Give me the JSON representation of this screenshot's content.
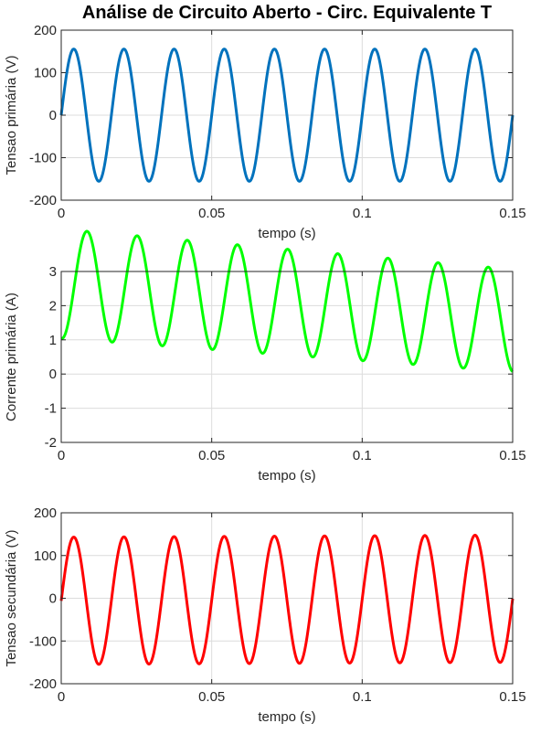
{
  "figure_title": "Análise de Circuito Aberto - Circ. Equivalente T",
  "chart_data": [
    {
      "type": "line",
      "xlabel": "tempo (s)",
      "ylabel": "Tensao primária (V)",
      "xlim": [
        0,
        0.15
      ],
      "ylim": [
        -200,
        200
      ],
      "xticks": [
        0,
        0.05,
        0.1,
        0.15
      ],
      "xtick_labels": [
        "0",
        "0.05",
        "0.1",
        "0.15"
      ],
      "yticks": [
        -200,
        -100,
        0,
        100,
        200
      ],
      "ytick_labels": [
        "-200",
        "-100",
        "0",
        "100",
        "200"
      ],
      "grid": true,
      "color": "#0072BD",
      "series": [
        {
          "model": "sine",
          "amplitude": 155.6,
          "amplitude_end": 155.6,
          "frequency_hz": 60,
          "phase_deg": 0,
          "offset": 0,
          "offset_end": 0,
          "x_range": [
            0,
            0.15
          ]
        }
      ]
    },
    {
      "type": "line",
      "xlabel": "tempo (s)",
      "ylabel": "Corrente primária (A)",
      "xlim": [
        0,
        0.15
      ],
      "ylim": [
        -2,
        3
      ],
      "xticks": [
        0,
        0.05,
        0.1,
        0.15
      ],
      "xtick_labels": [
        "0",
        "0.05",
        "0.1",
        "0.15"
      ],
      "yticks": [
        -2,
        -1,
        0,
        1,
        2,
        3
      ],
      "ytick_labels": [
        "-2",
        "-1",
        "0",
        "1",
        "2",
        "3"
      ],
      "grid": true,
      "color": "#00FF00",
      "series": [
        {
          "model": "decaying_offset_sine",
          "amplitude": 1.6,
          "amplitude_end": 1.5,
          "frequency_hz": 60,
          "phase_deg": -95,
          "offset": 1.05,
          "offset_end": 0.07,
          "x_range": [
            0,
            0.15
          ]
        }
      ]
    },
    {
      "type": "line",
      "xlabel": "tempo (s)",
      "ylabel": "Tensao secundária (V)",
      "xlim": [
        0,
        0.15
      ],
      "ylim": [
        -200,
        200
      ],
      "xticks": [
        0,
        0.05,
        0.1,
        0.15
      ],
      "xtick_labels": [
        "0",
        "0.05",
        "0.1",
        "0.15"
      ],
      "yticks": [
        -200,
        -100,
        0,
        100,
        200
      ],
      "ytick_labels": [
        "-200",
        "-100",
        "0",
        "100",
        "200"
      ],
      "grid": true,
      "color": "#FF0000",
      "series": [
        {
          "model": "decaying_offset_sine",
          "amplitude": 149,
          "amplitude_end": 149,
          "frequency_hz": 60,
          "phase_deg": 0,
          "offset": -6,
          "offset_end": -1,
          "x_range": [
            0,
            0.15
          ]
        }
      ]
    }
  ]
}
